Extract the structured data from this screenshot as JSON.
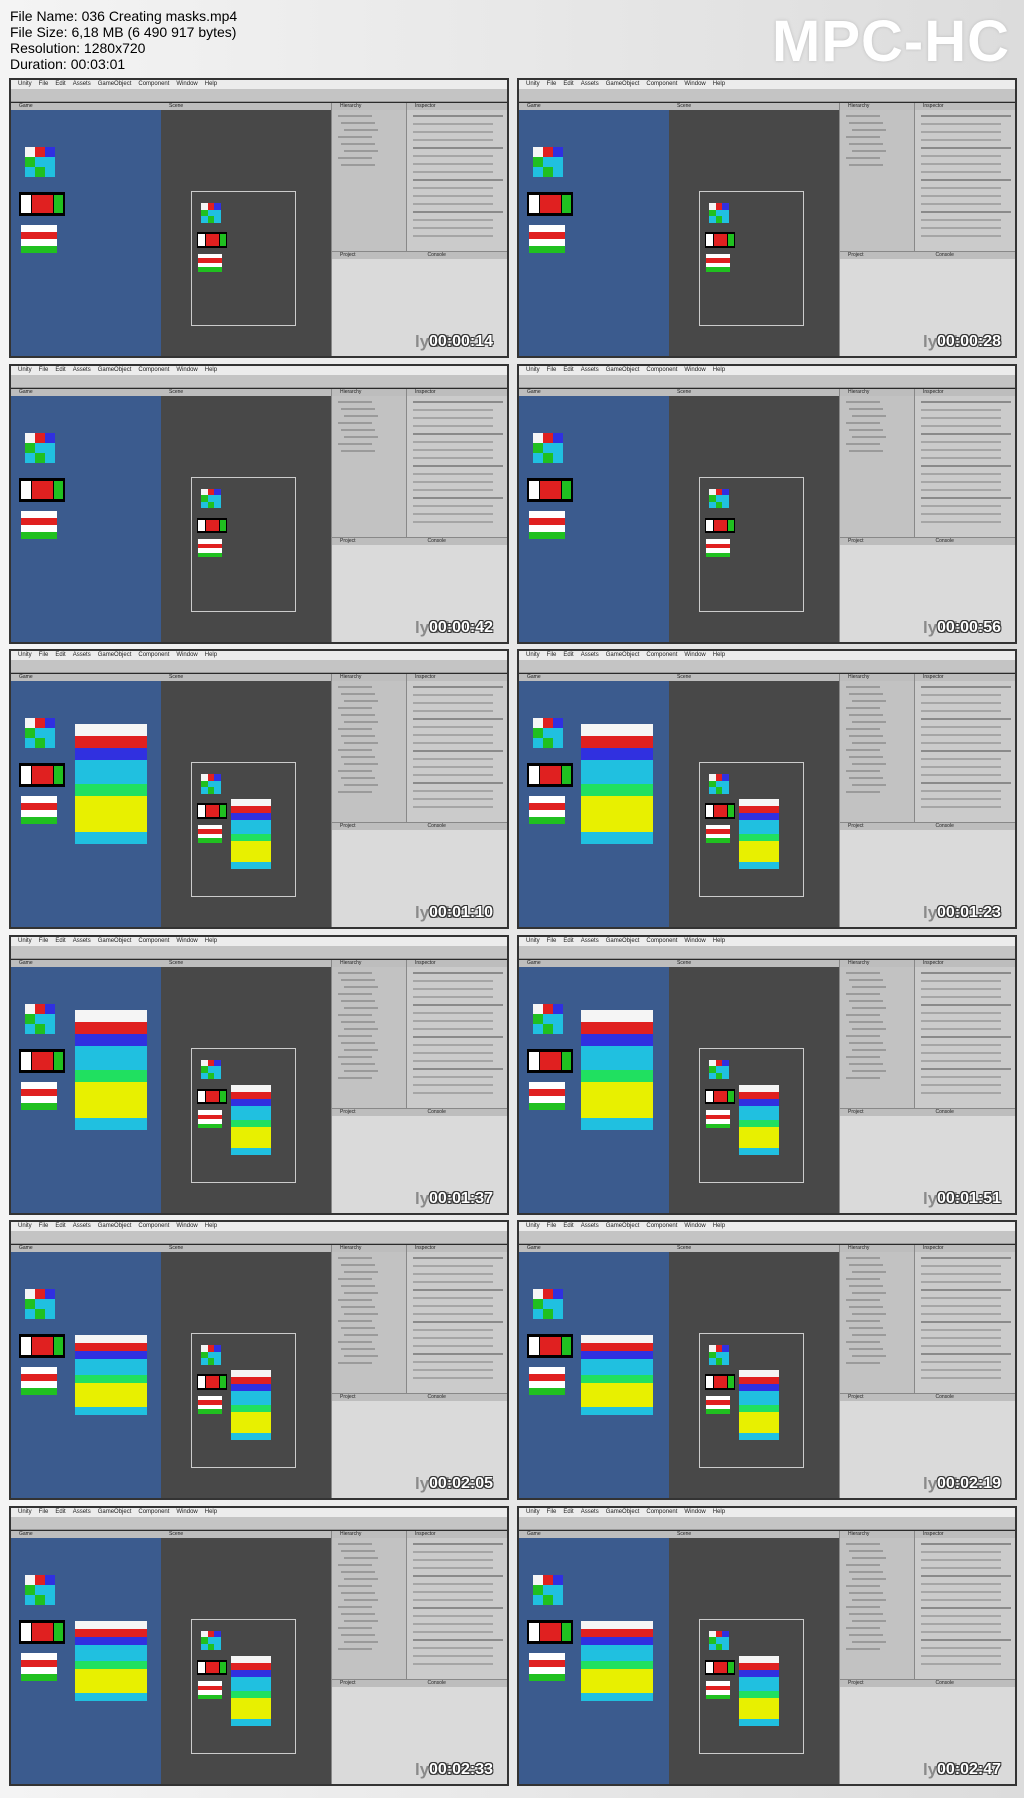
{
  "file_info": {
    "lines": [
      "File Name: 036 Creating masks.mp4",
      "File Size: 6,18 MB (6 490 917 bytes)",
      "Resolution: 1280x720",
      "Duration: 00:03:01"
    ]
  },
  "logo": "MPC-HC",
  "watermark": "lynda",
  "menu": [
    "Unity",
    "File",
    "Edit",
    "Assets",
    "GameObject",
    "Component",
    "Window",
    "Help"
  ],
  "panels": {
    "game": "Game",
    "scene": "Scene",
    "hierarchy": "Hierarchy",
    "inspector": "Inspector",
    "project": "Project",
    "console": "Console"
  },
  "thumbnails": [
    {
      "timestamp": "00:00:14"
    },
    {
      "timestamp": "00:00:28"
    },
    {
      "timestamp": "00:00:42"
    },
    {
      "timestamp": "00:00:56"
    },
    {
      "timestamp": "00:01:10"
    },
    {
      "timestamp": "00:01:23"
    },
    {
      "timestamp": "00:01:37"
    },
    {
      "timestamp": "00:01:51"
    },
    {
      "timestamp": "00:02:05"
    },
    {
      "timestamp": "00:02:19"
    },
    {
      "timestamp": "00:02:33"
    },
    {
      "timestamp": "00:02:47"
    }
  ]
}
